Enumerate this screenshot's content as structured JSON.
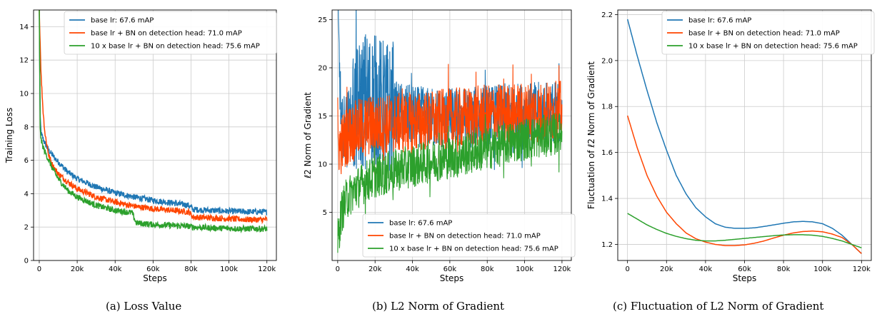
{
  "colors": {
    "base": "#1f77b4",
    "bn": "#ff4500",
    "tenx": "#2ca02c",
    "grid": "#cccccc"
  },
  "captions": [
    "(a)  Loss Value",
    "(b)  L2 Norm of Gradient",
    "(c)  Fluctuation of L2 Norm of Gradient"
  ],
  "chart_data": [
    {
      "type": "line",
      "title": "Loss Value",
      "xlabel": "Steps",
      "ylabel": "Training Loss",
      "xlim": [
        -3000,
        125000
      ],
      "ylim": [
        0,
        15
      ],
      "xticks": [
        0,
        20000,
        40000,
        60000,
        80000,
        100000,
        120000
      ],
      "xtick_labels": [
        "0",
        "20k",
        "40k",
        "60k",
        "80k",
        "100k",
        "120k"
      ],
      "yticks": [
        0,
        2,
        4,
        6,
        8,
        10,
        12,
        14
      ],
      "ytick_labels": [
        "0",
        "2",
        "4",
        "6",
        "8",
        "10",
        "12",
        "14"
      ],
      "legend_position": "top-right",
      "noise": "low",
      "series": [
        {
          "name": "base lr: 67.6 mAP",
          "color_key": "base",
          "x": [
            0,
            500,
            1000,
            2000,
            3000,
            5000,
            7000,
            10000,
            15000,
            20000,
            30000,
            40000,
            50000,
            60000,
            70000,
            79000,
            81000,
            90000,
            100000,
            110000,
            120000
          ],
          "y": [
            15,
            8.5,
            7.6,
            7.3,
            7.0,
            6.6,
            6.3,
            5.9,
            5.3,
            4.9,
            4.4,
            4.05,
            3.8,
            3.6,
            3.45,
            3.3,
            3.05,
            3.0,
            2.95,
            2.92,
            2.9
          ]
        },
        {
          "name": "base lr + BN on detection head: 71.0 mAP",
          "color_key": "bn",
          "x": [
            0,
            500,
            1000,
            2000,
            3000,
            5000,
            7000,
            10000,
            15000,
            20000,
            30000,
            40000,
            50000,
            60000,
            70000,
            79000,
            81000,
            90000,
            100000,
            110000,
            120000
          ],
          "y": [
            15,
            13.0,
            11.0,
            9.0,
            7.6,
            6.3,
            5.7,
            5.2,
            4.7,
            4.3,
            3.8,
            3.5,
            3.25,
            3.1,
            3.0,
            2.9,
            2.6,
            2.55,
            2.5,
            2.45,
            2.45
          ]
        },
        {
          "name": "10 x base lr + BN on detection head: 75.6 mAP",
          "color_key": "tenx",
          "x": [
            0,
            500,
            1000,
            2000,
            3000,
            5000,
            7000,
            10000,
            15000,
            20000,
            30000,
            40000,
            49000,
            51000,
            60000,
            70000,
            79000,
            81000,
            90000,
            100000,
            110000,
            120000
          ],
          "y": [
            15,
            8.0,
            7.2,
            6.8,
            6.5,
            6.0,
            5.5,
            4.9,
            4.2,
            3.8,
            3.3,
            3.0,
            2.85,
            2.25,
            2.15,
            2.1,
            2.05,
            2.0,
            1.95,
            1.92,
            1.9,
            1.9
          ]
        }
      ]
    },
    {
      "type": "line",
      "title": "L2 Norm of Gradient",
      "xlabel": "Steps",
      "ylabel": "ℓ2 Norm of Gradient",
      "xlim": [
        -3000,
        125000
      ],
      "ylim": [
        0,
        26
      ],
      "xticks": [
        0,
        20000,
        40000,
        60000,
        80000,
        100000,
        120000
      ],
      "xtick_labels": [
        "0",
        "20k",
        "40k",
        "60k",
        "80k",
        "100k",
        "120k"
      ],
      "yticks": [
        5,
        10,
        15,
        20,
        25
      ],
      "ytick_labels": [
        "5",
        "10",
        "15",
        "20",
        "25"
      ],
      "legend_position": "bottom-right",
      "noise": "high",
      "series": [
        {
          "name": "base lr: 67.6 mAP",
          "color_key": "base",
          "x": [
            0,
            2000,
            5000,
            10000,
            15000,
            20000,
            30000,
            40000,
            50000,
            60000,
            70000,
            80000,
            90000,
            100000,
            110000,
            120000
          ],
          "y": [
            26,
            13.5,
            14.5,
            15.5,
            17.0,
            16.5,
            15.5,
            15.0,
            14.8,
            14.8,
            14.8,
            15.0,
            15.2,
            15.3,
            15.4,
            15.5
          ]
        },
        {
          "name": "base lr + BN on detection head: 71.0 mAP",
          "color_key": "bn",
          "x": [
            0,
            2000,
            5000,
            10000,
            15000,
            20000,
            30000,
            40000,
            50000,
            60000,
            70000,
            80000,
            90000,
            100000,
            110000,
            120000
          ],
          "y": [
            12,
            12.0,
            13.0,
            13.5,
            14.0,
            14.0,
            14.2,
            14.3,
            14.5,
            14.7,
            14.9,
            15.1,
            15.2,
            15.3,
            15.4,
            15.5
          ]
        },
        {
          "name": "10 x base lr + BN on detection head: 75.6 mAP",
          "color_key": "tenx",
          "x": [
            0,
            2000,
            5000,
            10000,
            15000,
            20000,
            30000,
            40000,
            50000,
            60000,
            70000,
            80000,
            90000,
            100000,
            110000,
            120000
          ],
          "y": [
            2,
            5.0,
            6.5,
            7.5,
            8.2,
            8.7,
            9.3,
            9.8,
            10.3,
            10.7,
            11.1,
            11.6,
            12.1,
            12.6,
            12.9,
            13.2
          ]
        }
      ]
    },
    {
      "type": "line",
      "title": "Fluctuation of L2 Norm of Gradient",
      "xlabel": "Steps",
      "ylabel": "Fluctuation of ℓ2 Norm of Gradient",
      "xlim": [
        -5000,
        125000
      ],
      "ylim": [
        1.13,
        2.22
      ],
      "xticks": [
        0,
        20000,
        40000,
        60000,
        80000,
        100000,
        120000
      ],
      "xtick_labels": [
        "0",
        "20k",
        "40k",
        "60k",
        "80k",
        "100k",
        "120k"
      ],
      "yticks": [
        1.2,
        1.4,
        1.6,
        1.8,
        2.0,
        2.2
      ],
      "ytick_labels": [
        "1.2",
        "1.4",
        "1.6",
        "1.8",
        "2.0",
        "2.2"
      ],
      "legend_position": "top-right",
      "noise": "none",
      "series": [
        {
          "name": "base lr: 67.6 mAP",
          "color_key": "base",
          "x": [
            0,
            5000,
            10000,
            15000,
            20000,
            25000,
            30000,
            35000,
            40000,
            45000,
            50000,
            55000,
            60000,
            65000,
            70000,
            75000,
            80000,
            85000,
            90000,
            95000,
            100000,
            105000,
            110000,
            115000,
            120000
          ],
          "y": [
            2.18,
            2.02,
            1.87,
            1.73,
            1.61,
            1.5,
            1.42,
            1.36,
            1.32,
            1.29,
            1.275,
            1.27,
            1.27,
            1.272,
            1.278,
            1.285,
            1.292,
            1.298,
            1.3,
            1.298,
            1.29,
            1.27,
            1.24,
            1.2,
            1.16
          ]
        },
        {
          "name": "base lr + BN on detection head: 71.0 mAP",
          "color_key": "bn",
          "x": [
            0,
            5000,
            10000,
            15000,
            20000,
            25000,
            30000,
            35000,
            40000,
            45000,
            50000,
            55000,
            60000,
            65000,
            70000,
            75000,
            80000,
            85000,
            90000,
            95000,
            100000,
            105000,
            110000,
            115000,
            120000
          ],
          "y": [
            1.76,
            1.62,
            1.5,
            1.41,
            1.34,
            1.29,
            1.25,
            1.225,
            1.21,
            1.2,
            1.195,
            1.195,
            1.198,
            1.205,
            1.215,
            1.228,
            1.24,
            1.25,
            1.256,
            1.258,
            1.255,
            1.245,
            1.23,
            1.2,
            1.16
          ]
        },
        {
          "name": "10 x base lr + BN on detection head: 75.6 mAP",
          "color_key": "tenx",
          "x": [
            0,
            5000,
            10000,
            15000,
            20000,
            25000,
            30000,
            35000,
            40000,
            45000,
            50000,
            55000,
            60000,
            65000,
            70000,
            75000,
            80000,
            85000,
            90000,
            95000,
            100000,
            105000,
            110000,
            115000,
            120000
          ],
          "y": [
            1.335,
            1.31,
            1.285,
            1.265,
            1.248,
            1.235,
            1.225,
            1.218,
            1.215,
            1.215,
            1.218,
            1.222,
            1.226,
            1.23,
            1.234,
            1.238,
            1.241,
            1.242,
            1.242,
            1.24,
            1.235,
            1.226,
            1.215,
            1.2,
            1.185
          ]
        }
      ]
    }
  ]
}
